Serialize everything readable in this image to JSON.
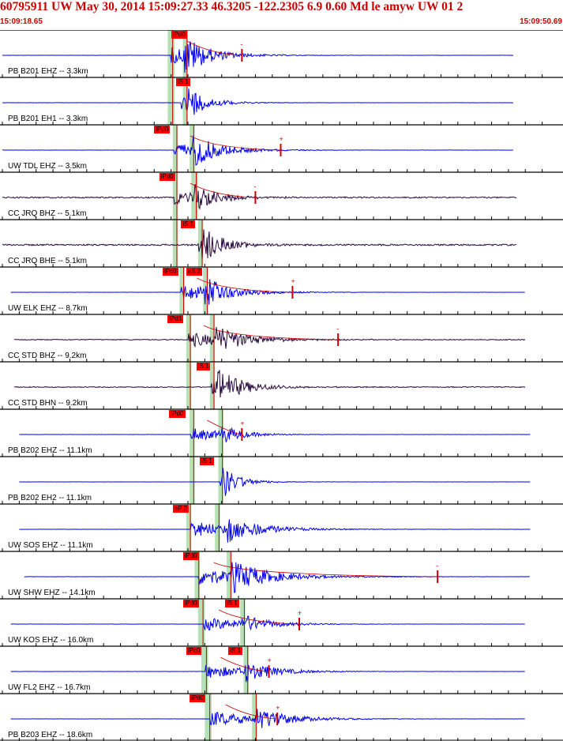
{
  "header": {
    "title": "60795911 UW May 30, 2014 15:09:27.33   46.3205 -122.2305  6.9 0.60 Md le amyw UW 01   2",
    "start_time": "15:09:18.65",
    "end_time": "15:09:50.69"
  },
  "colors": {
    "title": "#cc0000",
    "short_period_trace": "#0000ee",
    "broadband_trace": "#2a0a40",
    "pick_line": "#cc0000",
    "pick_label_bg": "#ff0000",
    "pick_window": "#b6e0b6",
    "grid": "#000000"
  },
  "time_window": {
    "start_s": 0,
    "end_s": 32.04
  },
  "panels": [
    {
      "label": "PB B201 EHZ -- 3.3km",
      "color": "short_period",
      "start_s": 0.0,
      "end_s": 30.3,
      "noise": 0.03,
      "picks": [
        {
          "label": "iPd0",
          "t": 10.0,
          "window": [
            9.8,
            10.2
          ]
        }
      ],
      "windows": [
        [
          9.8,
          10.2
        ],
        [
          10.7,
          11.0
        ]
      ],
      "onset_s": 10.0,
      "s_s": 10.8,
      "amp": 1.0,
      "decay": 4.0,
      "coda_end_s": 14.2,
      "coda_marker": {
        "t": 14.2,
        "sign": "-"
      }
    },
    {
      "label": "PB B201 EH1 -- 3.3km",
      "color": "short_period",
      "start_s": 0.0,
      "end_s": 30.3,
      "noise": 0.03,
      "picks": [
        {
          "label": "iS 1",
          "t": 10.3,
          "window": [
            10.7,
            11.0
          ]
        }
      ],
      "windows": [
        [
          9.8,
          10.2
        ],
        [
          10.7,
          11.0
        ]
      ],
      "onset_s": 10.6,
      "s_s": 10.9,
      "amp": 0.8,
      "decay": 3.0,
      "coda_end_s": null,
      "coda_marker": null
    },
    {
      "label": "UW TDL EHZ -- 3.5km",
      "color": "short_period",
      "start_s": 0.0,
      "end_s": 30.3,
      "noise": 0.03,
      "picks": [
        {
          "label": "iPd0",
          "t": 9.0,
          "window": [
            10.1,
            10.4
          ]
        }
      ],
      "windows": [
        [
          10.1,
          10.4
        ],
        [
          11.1,
          11.4
        ]
      ],
      "onset_s": 10.2,
      "s_s": 11.2,
      "amp": 0.9,
      "decay": 4.5,
      "coda_end_s": 16.5,
      "coda_marker": {
        "t": 16.5,
        "sign": "+"
      }
    },
    {
      "label": "CC JRQ BHZ -- 5.1km",
      "color": "broadband",
      "start_s": 0.0,
      "end_s": 30.5,
      "noise": 0.12,
      "picks": [
        {
          "label": "iPd0",
          "t": 9.3,
          "window": [
            10.1,
            10.4
          ]
        }
      ],
      "windows": [
        [
          10.1,
          10.4
        ],
        [
          11.2,
          11.6
        ]
      ],
      "onset_s": 10.2,
      "s_s": 11.4,
      "amp": 0.8,
      "decay": 4.0,
      "coda_end_s": 15.0,
      "coda_marker": {
        "t": 15.0,
        "sign": "-"
      }
    },
    {
      "label": "CC JRQ BHE -- 5.1km",
      "color": "broadband",
      "start_s": 0.0,
      "end_s": 30.5,
      "noise": 0.14,
      "picks": [
        {
          "label": "iS 1",
          "t": 10.6,
          "window": [
            11.6,
            11.9
          ]
        }
      ],
      "windows": [
        [
          10.1,
          10.4
        ],
        [
          11.6,
          11.9
        ]
      ],
      "onset_s": 11.6,
      "s_s": 11.8,
      "amp": 0.8,
      "decay": 3.5,
      "coda_end_s": null,
      "coda_marker": null
    },
    {
      "label": "UW ELK EHZ -- 8.7km",
      "color": "short_period",
      "start_s": 0.5,
      "end_s": 31.0,
      "noise": 0.03,
      "picks": [
        {
          "label": "iPc0",
          "t": 9.5,
          "window": [
            10.5,
            10.8
          ]
        },
        {
          "label": "eS 2",
          "t": 10.9,
          "window": [
            11.9,
            12.2
          ]
        }
      ],
      "windows": [
        [
          10.5,
          10.8
        ],
        [
          11.9,
          12.2
        ]
      ],
      "onset_s": 10.6,
      "s_s": 12.0,
      "amp": 0.9,
      "decay": 4.5,
      "coda_end_s": 17.2,
      "coda_marker": {
        "t": 17.2,
        "sign": "+"
      }
    },
    {
      "label": "CC STD BHZ -- 9.2km",
      "color": "broadband",
      "start_s": 0.7,
      "end_s": 31.0,
      "noise": 0.08,
      "picks": [
        {
          "label": "iPd1",
          "t": 9.8,
          "window": [
            10.9,
            11.2
          ]
        }
      ],
      "windows": [
        [
          10.9,
          11.2
        ],
        [
          12.3,
          12.6
        ]
      ],
      "onset_s": 11.0,
      "s_s": 12.6,
      "amp": 0.9,
      "decay": 5.0,
      "coda_end_s": 19.9,
      "coda_marker": {
        "t": 19.9,
        "sign": "-"
      }
    },
    {
      "label": "CC STD BHN -- 9.2km",
      "color": "broadband",
      "start_s": 0.7,
      "end_s": 31.0,
      "noise": 0.08,
      "picks": [
        {
          "label": "iS 1",
          "t": 11.5,
          "window": [
            12.3,
            12.6
          ]
        }
      ],
      "windows": [
        [
          10.9,
          11.2
        ],
        [
          12.3,
          12.6
        ]
      ],
      "onset_s": 12.4,
      "s_s": 12.7,
      "amp": 0.8,
      "decay": 4.0,
      "coda_end_s": null,
      "coda_marker": null
    },
    {
      "label": "PB B202 EHZ -- 11.1km",
      "color": "short_period",
      "start_s": 1.0,
      "end_s": 31.3,
      "noise": 0.03,
      "picks": [
        {
          "label": "iPd0",
          "t": 9.9,
          "window": [
            11.1,
            11.4
          ]
        }
      ],
      "windows": [
        [
          11.1,
          11.4
        ],
        [
          12.8,
          13.1
        ]
      ],
      "onset_s": 11.2,
      "s_s": 13.0,
      "amp": 0.8,
      "decay": 3.5,
      "coda_end_s": 14.2,
      "coda_marker": {
        "t": 14.2,
        "sign": "+"
      }
    },
    {
      "label": "PB B202 EH2 -- 11.1km",
      "color": "short_period",
      "start_s": 1.0,
      "end_s": 31.3,
      "noise": 0.03,
      "picks": [
        {
          "label": "iS 1",
          "t": 11.7,
          "window": [
            12.8,
            13.1
          ]
        }
      ],
      "windows": [
        [
          11.1,
          11.4
        ],
        [
          12.8,
          13.1
        ]
      ],
      "onset_s": 12.9,
      "s_s": 13.0,
      "amp": 0.7,
      "decay": 2.5,
      "coda_end_s": null,
      "coda_marker": null
    },
    {
      "label": "UW SOS EHZ -- 11.1km",
      "color": "short_period",
      "start_s": 1.0,
      "end_s": 31.3,
      "noise": 0.03,
      "picks": [
        {
          "label": "eP 2",
          "t": 10.1,
          "window": [
            10.9,
            11.2
          ]
        }
      ],
      "windows": [
        [
          10.9,
          11.2
        ],
        [
          12.6,
          12.9
        ]
      ],
      "onset_s": 11.2,
      "s_s": 13.3,
      "amp": 0.9,
      "decay": 5.5,
      "coda_end_s": null,
      "coda_marker": null
    },
    {
      "label": "UW SHW EHZ -- 14.1km",
      "color": "short_period",
      "start_s": 1.3,
      "end_s": 31.3,
      "noise": 0.04,
      "picks": [
        {
          "label": "iPd0",
          "t": 10.7,
          "window": [
            11.4,
            11.7
          ]
        }
      ],
      "windows": [
        [
          11.4,
          11.7
        ],
        [
          13.3,
          13.6
        ]
      ],
      "onset_s": 11.6,
      "s_s": 13.6,
      "amp": 1.0,
      "decay": 6.0,
      "coda_end_s": 25.8,
      "coda_marker": {
        "t": 25.8,
        "sign": "-"
      }
    },
    {
      "label": "UW KOS EHZ -- 16.0km",
      "color": "short_period",
      "start_s": 0.5,
      "end_s": 31.0,
      "noise": 0.03,
      "picks": [
        {
          "label": "iPd0",
          "t": 10.7,
          "window": [
            11.6,
            12.0
          ]
        },
        {
          "label": "iS 1",
          "t": 13.2,
          "window": [
            14.1,
            14.4
          ]
        }
      ],
      "windows": [
        [
          11.6,
          12.0
        ],
        [
          14.1,
          14.4
        ]
      ],
      "onset_s": 11.9,
      "s_s": 14.2,
      "amp": 0.8,
      "decay": 4.5,
      "coda_end_s": 17.6,
      "coda_marker": {
        "t": 17.6,
        "sign": "+"
      }
    },
    {
      "label": "UW FL2 EHZ -- 16.7km",
      "color": "short_period",
      "start_s": 0.5,
      "end_s": 31.0,
      "noise": 0.03,
      "picks": [
        {
          "label": "iPc0",
          "t": 10.9,
          "window": [
            11.8,
            12.2
          ]
        },
        {
          "label": "iS 1",
          "t": 13.4,
          "window": [
            14.3,
            14.6
          ]
        }
      ],
      "windows": [
        [
          11.8,
          12.2
        ],
        [
          14.3,
          14.6
        ]
      ],
      "onset_s": 12.0,
      "s_s": 14.4,
      "amp": 0.8,
      "decay": 5.0,
      "coda_end_s": 15.8,
      "coda_marker": {
        "t": 15.8,
        "sign": "+"
      }
    },
    {
      "label": "PB B203 EHZ -- 18.6km",
      "color": "short_period",
      "start_s": 0.5,
      "end_s": 31.0,
      "noise": 0.03,
      "picks": [
        {
          "label": "iPd0",
          "t": 11.1,
          "window": [
            12.0,
            12.4
          ]
        }
      ],
      "windows": [
        [
          12.0,
          12.4
        ],
        [
          14.8,
          15.1
        ]
      ],
      "onset_s": 12.3,
      "s_s": 15.0,
      "amp": 0.9,
      "decay": 5.5,
      "coda_end_s": 16.3,
      "coda_marker": {
        "t": 16.3,
        "sign": "+"
      }
    }
  ]
}
